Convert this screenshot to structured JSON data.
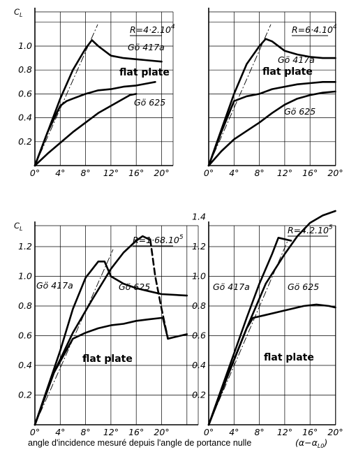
{
  "figure": {
    "caption": "angle d'incidence mesuré depuis l'angle de portance nulle",
    "caption_math": "(α−α",
    "caption_math_sub": "L0",
    "caption_math_end": ")"
  },
  "chart_data": [
    {
      "type": "line",
      "ylabel": "C",
      "ylabel_sub": "L",
      "reynolds": "R=4·2.10",
      "reynolds_exp": "4",
      "xticks": [
        "0°",
        "4°",
        "8°",
        "12°",
        "16°",
        "20°"
      ],
      "yticks": [
        "0.2",
        "0.4",
        "0.6",
        "0.8",
        "1.0"
      ],
      "xlim": [
        0,
        20
      ],
      "ylim": [
        0,
        1.2
      ],
      "series": [
        {
          "name": "Gö 417a",
          "points": [
            [
              0,
              0
            ],
            [
              2,
              0.28
            ],
            [
              4,
              0.56
            ],
            [
              6,
              0.8
            ],
            [
              8,
              0.98
            ],
            [
              9,
              1.05
            ],
            [
              10,
              1.0
            ],
            [
              12,
              0.92
            ],
            [
              14,
              0.9
            ],
            [
              16,
              0.89
            ],
            [
              18,
              0.88
            ],
            [
              20,
              0.87
            ]
          ]
        },
        {
          "name": "flat plate",
          "points": [
            [
              0,
              0
            ],
            [
              2,
              0.28
            ],
            [
              4,
              0.5
            ],
            [
              5,
              0.54
            ],
            [
              6,
              0.56
            ],
            [
              8,
              0.6
            ],
            [
              10,
              0.63
            ],
            [
              12,
              0.64
            ],
            [
              14,
              0.66
            ],
            [
              16,
              0.67
            ],
            [
              18,
              0.69
            ],
            [
              19,
              0.7
            ]
          ]
        },
        {
          "name": "Gö 625",
          "points": [
            [
              0,
              0
            ],
            [
              2,
              0.1
            ],
            [
              4,
              0.19
            ],
            [
              6,
              0.28
            ],
            [
              8,
              0.36
            ],
            [
              10,
              0.44
            ],
            [
              12,
              0.5
            ],
            [
              14,
              0.56
            ],
            [
              15,
              0.59
            ],
            [
              16,
              0.6
            ]
          ]
        }
      ]
    },
    {
      "type": "line",
      "ylabel": "",
      "reynolds": "R=6·4.10",
      "reynolds_exp": "4",
      "xticks": [
        "0°",
        "4°",
        "8°",
        "12°",
        "16°",
        "20°"
      ],
      "yticks": [],
      "xlim": [
        0,
        20
      ],
      "ylim": [
        0,
        1.2
      ],
      "series": [
        {
          "name": "Gö 417a",
          "points": [
            [
              0,
              0
            ],
            [
              2,
              0.3
            ],
            [
              4,
              0.6
            ],
            [
              6,
              0.85
            ],
            [
              8,
              1.0
            ],
            [
              9,
              1.06
            ],
            [
              10,
              1.04
            ],
            [
              12,
              0.96
            ],
            [
              14,
              0.93
            ],
            [
              16,
              0.91
            ],
            [
              18,
              0.9
            ],
            [
              20,
              0.9
            ]
          ]
        },
        {
          "name": "flat plate",
          "points": [
            [
              0,
              0
            ],
            [
              2,
              0.28
            ],
            [
              4,
              0.54
            ],
            [
              6,
              0.58
            ],
            [
              8,
              0.6
            ],
            [
              10,
              0.64
            ],
            [
              12,
              0.66
            ],
            [
              14,
              0.68
            ],
            [
              16,
              0.69
            ],
            [
              18,
              0.7
            ],
            [
              20,
              0.7
            ]
          ]
        },
        {
          "name": "Gö 625",
          "points": [
            [
              0,
              0
            ],
            [
              2,
              0.12
            ],
            [
              4,
              0.22
            ],
            [
              6,
              0.29
            ],
            [
              8,
              0.36
            ],
            [
              10,
              0.44
            ],
            [
              12,
              0.51
            ],
            [
              14,
              0.56
            ],
            [
              16,
              0.59
            ],
            [
              18,
              0.61
            ],
            [
              20,
              0.62
            ]
          ]
        }
      ]
    },
    {
      "type": "line",
      "ylabel": "C",
      "ylabel_sub": "L",
      "reynolds": "R=1·68.10",
      "reynolds_exp": "5",
      "xticks": [
        "0°",
        "4°",
        "8°",
        "12°",
        "16°",
        "20°"
      ],
      "yticks": [
        "0.2",
        "0.4",
        "0.6",
        "0.8",
        "1.0",
        "1.2"
      ],
      "xlim": [
        0,
        20
      ],
      "ylim": [
        0,
        1.35
      ],
      "series": [
        {
          "name": "Gö 417a",
          "points": [
            [
              0,
              0
            ],
            [
              2,
              0.25
            ],
            [
              4,
              0.5
            ],
            [
              6,
              0.78
            ],
            [
              8,
              0.99
            ],
            [
              10,
              1.1
            ],
            [
              11,
              1.1
            ],
            [
              12,
              1.0
            ],
            [
              14,
              0.95
            ],
            [
              16,
              0.92
            ],
            [
              18,
              0.9
            ],
            [
              20,
              0.88
            ],
            [
              24,
              0.87
            ]
          ]
        },
        {
          "name": "Gö 625",
          "points": [
            [
              0,
              0
            ],
            [
              3,
              0.35
            ],
            [
              6,
              0.62
            ],
            [
              9,
              0.84
            ],
            [
              12,
              1.05
            ],
            [
              14,
              1.16
            ],
            [
              16,
              1.24
            ],
            [
              17,
              1.27
            ],
            [
              18,
              1.25
            ]
          ]
        },
        {
          "name": "flat plate",
          "points": [
            [
              0,
              0
            ],
            [
              3,
              0.35
            ],
            [
              6,
              0.58
            ],
            [
              8,
              0.62
            ],
            [
              10,
              0.65
            ],
            [
              12,
              0.67
            ],
            [
              14,
              0.68
            ],
            [
              16,
              0.7
            ],
            [
              18,
              0.71
            ],
            [
              20,
              0.72
            ]
          ]
        },
        {
          "name": "",
          "dashed": true,
          "points": [
            [
              18.2,
              1.25
            ],
            [
              19,
              1.0
            ],
            [
              20,
              0.78
            ],
            [
              21,
              0.58
            ]
          ]
        },
        {
          "name": "",
          "points": [
            [
              20.2,
              0.72
            ],
            [
              21,
              0.58
            ]
          ]
        },
        {
          "name": "",
          "points": [
            [
              21,
              0.58
            ],
            [
              22,
              0.59
            ],
            [
              23,
              0.6
            ],
            [
              24,
              0.61
            ]
          ]
        }
      ]
    },
    {
      "type": "line",
      "ylabel": "",
      "reynolds": "R=4.2.10",
      "reynolds_exp": "5",
      "xticks": [
        "0°",
        "4°",
        "8°",
        "12°",
        "16°",
        "20°"
      ],
      "yticks": [
        "0.2",
        "0.4",
        "0.6",
        "0.8",
        "1.0",
        "1.2",
        "1.4"
      ],
      "xlim": [
        0,
        20
      ],
      "ylim": [
        0,
        1.5
      ],
      "series": [
        {
          "name": "Gö 417a",
          "points": [
            [
              0,
              0
            ],
            [
              2,
              0.24
            ],
            [
              4,
              0.48
            ],
            [
              6,
              0.72
            ],
            [
              8,
              0.95
            ],
            [
              10,
              1.15
            ],
            [
              11,
              1.26
            ],
            [
              13,
              1.24
            ]
          ]
        },
        {
          "name": "Gö 625",
          "points": [
            [
              0,
              0
            ],
            [
              3,
              0.33
            ],
            [
              6,
              0.65
            ],
            [
              9,
              0.95
            ],
            [
              12,
              1.15
            ],
            [
              14,
              1.27
            ],
            [
              16,
              1.36
            ],
            [
              18,
              1.41
            ],
            [
              20,
              1.44
            ]
          ]
        },
        {
          "name": "flat plate",
          "points": [
            [
              0,
              0
            ],
            [
              3,
              0.33
            ],
            [
              6,
              0.65
            ],
            [
              7,
              0.72
            ],
            [
              9,
              0.74
            ],
            [
              12,
              0.77
            ],
            [
              15,
              0.8
            ],
            [
              17,
              0.81
            ],
            [
              19,
              0.8
            ],
            [
              20,
              0.79
            ]
          ]
        }
      ]
    }
  ]
}
